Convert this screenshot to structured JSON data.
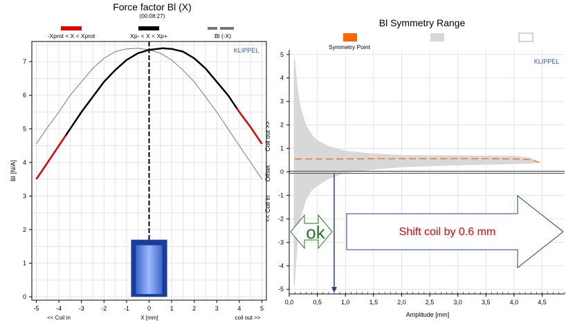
{
  "chart_data": [
    {
      "type": "line",
      "title": "Force factor Bl (X)",
      "subtitle": "(00:08:27)",
      "xlabel": "X [mm]",
      "xlabel_left": "<< Coil in",
      "xlabel_right": "coil out >>",
      "ylabel": "Bl [N/A]",
      "watermark": "KLIPPEL",
      "xlim": [
        -5.2,
        5.2
      ],
      "ylim": [
        -0.1,
        7.6
      ],
      "xticks": [
        -5,
        -4,
        -3,
        -2,
        -1,
        0,
        1,
        2,
        3,
        4,
        5
      ],
      "yticks": [
        0,
        1,
        2,
        3,
        4,
        5,
        6,
        7
      ],
      "grid": true,
      "legend_position": "top",
      "legend": [
        {
          "label": "-Xprot < X < Xprot",
          "color": "#e00000"
        },
        {
          "label": "Xp- < X < Xp+",
          "color": "#000000"
        },
        {
          "label": "Bl (-X)",
          "color": "#777777"
        }
      ],
      "series": [
        {
          "name": "Bl (X)",
          "color": "#000000",
          "x": [
            -5.0,
            -4.5,
            -4.0,
            -3.5,
            -3.0,
            -2.5,
            -2.0,
            -1.5,
            -1.0,
            -0.5,
            0.0,
            0.6,
            1.0,
            1.5,
            2.0,
            2.5,
            3.0,
            3.5,
            4.0,
            4.5,
            5.0
          ],
          "values": [
            3.5,
            4.0,
            4.5,
            5.0,
            5.5,
            5.95,
            6.4,
            6.75,
            7.05,
            7.25,
            7.35,
            7.4,
            7.38,
            7.3,
            7.1,
            6.8,
            6.4,
            6.0,
            5.5,
            5.05,
            4.55
          ]
        },
        {
          "name": "Bl (-X)",
          "color": "#777777",
          "x": [
            -5.0,
            -4.5,
            -4.0,
            -3.5,
            -3.0,
            -2.5,
            -2.0,
            -1.5,
            -1.0,
            -0.5,
            0.0,
            0.5,
            1.0,
            1.5,
            2.0,
            2.5,
            3.0,
            3.5,
            4.0,
            4.5,
            5.0
          ],
          "values": [
            4.55,
            5.05,
            5.5,
            6.0,
            6.4,
            6.8,
            7.1,
            7.3,
            7.38,
            7.4,
            7.35,
            7.25,
            7.05,
            6.75,
            6.4,
            5.95,
            5.5,
            5.0,
            4.5,
            4.0,
            3.5
          ]
        }
      ],
      "xprot": [
        -3.7,
        3.9
      ],
      "coil_rest_position_mm": 0.0,
      "coil_symbol_x": [
        -0.8,
        0.8
      ],
      "coil_symbol_y": [
        0.0,
        1.7
      ]
    },
    {
      "type": "area",
      "title": "Bl Symmetry Range",
      "xlabel": "Amplitude [mm]",
      "ylabel": "<< Coil in        Offset        Coil out >>",
      "watermark": "KLIPPEL",
      "xlim": [
        0.0,
        4.9
      ],
      "ylim": [
        -5.2,
        5.2
      ],
      "xticks": [
        "0,0",
        "0,5",
        "1,0",
        "1,5",
        "2,0",
        "2,5",
        "3,0",
        "3,5",
        "4,0",
        "4,5"
      ],
      "xtick_values": [
        0.0,
        0.5,
        1.0,
        1.5,
        2.0,
        2.5,
        3.0,
        3.5,
        4.0,
        4.5
      ],
      "yticks": [
        5,
        4,
        3,
        2,
        1,
        0,
        -1,
        -2,
        -3,
        -4,
        -5
      ],
      "grid": true,
      "legend_position": "top",
      "legend": [
        {
          "label": "Symmetry Point",
          "color": "#ff6600"
        },
        {
          "label": "",
          "color": "#d8d8d8"
        },
        {
          "label": "",
          "color": "#ffffff"
        }
      ],
      "series": [
        {
          "name": "Symmetry Point",
          "color": "#ff6600",
          "x": [
            0.1,
            0.5,
            1.0,
            1.5,
            2.0,
            2.5,
            3.0,
            3.5,
            4.0,
            4.3,
            4.45
          ],
          "values": [
            0.55,
            0.55,
            0.55,
            0.56,
            0.56,
            0.56,
            0.56,
            0.56,
            0.55,
            0.52,
            0.4
          ]
        }
      ],
      "range_upper": {
        "x": [
          0.08,
          0.1,
          0.15,
          0.2,
          0.3,
          0.4,
          0.5,
          0.7,
          1.0,
          1.5,
          2.0,
          3.0,
          4.0,
          4.3,
          4.45
        ],
        "values": [
          4.85,
          4.8,
          3.6,
          2.8,
          2.0,
          1.6,
          1.35,
          1.1,
          0.9,
          0.78,
          0.72,
          0.7,
          0.68,
          0.6,
          0.4
        ]
      },
      "range_lower": {
        "x": [
          0.08,
          0.1,
          0.15,
          0.2,
          0.3,
          0.4,
          0.5,
          0.7,
          1.0,
          1.5,
          2.0,
          3.0,
          4.0,
          4.3,
          4.45
        ],
        "values": [
          -4.85,
          -4.8,
          -3.0,
          -2.0,
          -1.2,
          -0.8,
          -0.6,
          -0.3,
          -0.05,
          0.1,
          0.2,
          0.28,
          0.33,
          0.35,
          0.4
        ]
      },
      "marker_amplitude_mm": 0.8,
      "annotation": {
        "ok_label": "ok",
        "ok_color": "#227722",
        "shift_label": "Shift coil by 0.6 mm",
        "shift_color": "#e00000",
        "arrow_color": "#1f3f8f"
      }
    }
  ]
}
